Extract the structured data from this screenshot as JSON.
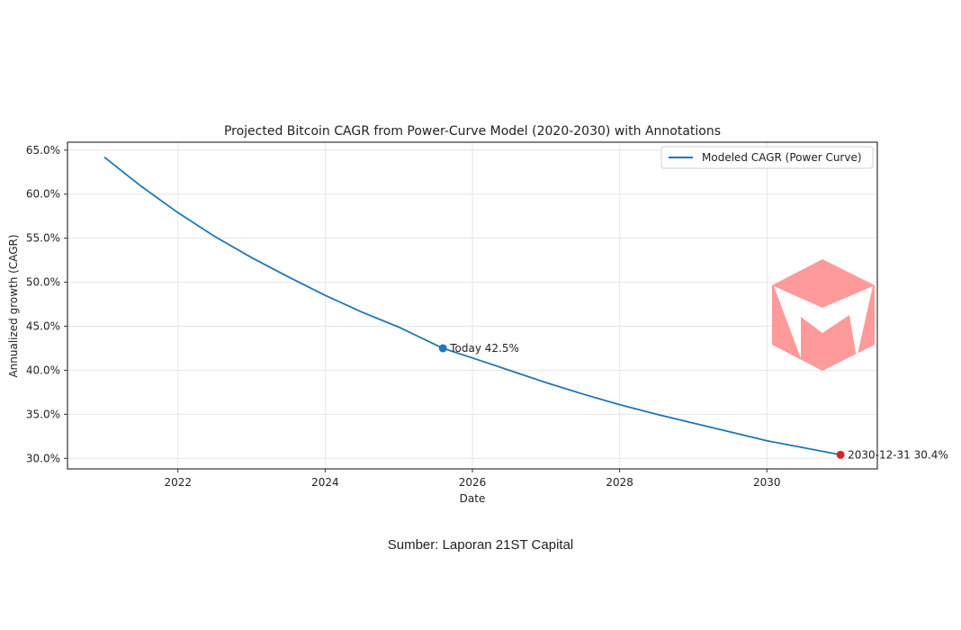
{
  "chart_data": {
    "type": "line",
    "title": "Projected Bitcoin CAGR from Power-Curve Model (2020-2030) with Annotations",
    "xlabel": "Date",
    "ylabel": "Annualized growth (CAGR)",
    "xlim": [
      2020.5,
      2031.5
    ],
    "ylim": [
      28.8,
      65.9
    ],
    "x_ticks": [
      2022,
      2024,
      2026,
      2028,
      2030
    ],
    "x_tick_labels": [
      "2022",
      "2024",
      "2026",
      "2028",
      "2030"
    ],
    "y_ticks": [
      30,
      35,
      40,
      45,
      50,
      55,
      60,
      65
    ],
    "y_tick_labels": [
      "30.0%",
      "35.0%",
      "40.0%",
      "45.0%",
      "50.0%",
      "55.0%",
      "60.0%",
      "65.0%"
    ],
    "grid": true,
    "legend_position": "upper right",
    "series": [
      {
        "name": "Modeled CAGR (Power Curve)",
        "color": "#1f77b4",
        "x": [
          2021.0,
          2021.5,
          2022.0,
          2022.5,
          2023.0,
          2023.5,
          2024.0,
          2024.5,
          2025.0,
          2025.6,
          2026.0,
          2026.5,
          2027.0,
          2027.5,
          2028.0,
          2028.5,
          2029.0,
          2029.5,
          2030.0,
          2030.5,
          2031.0
        ],
        "values": [
          64.2,
          60.9,
          57.9,
          55.2,
          52.8,
          50.6,
          48.5,
          46.6,
          44.9,
          42.5,
          41.4,
          40.0,
          38.6,
          37.3,
          36.1,
          35.0,
          34.0,
          33.0,
          32.0,
          31.2,
          30.4
        ]
      }
    ],
    "annotations": [
      {
        "label": "Today 42.5%",
        "x": 2025.6,
        "y": 42.5,
        "marker_color": "#1f77b4"
      },
      {
        "label": "2030-12-31 30.4%",
        "x": 2031.0,
        "y": 30.4,
        "marker_color": "#d62728"
      }
    ]
  },
  "legend": {
    "label": "Modeled CAGR (Power Curve)"
  },
  "watermark": {
    "icon": "m-cube-logo",
    "color": "#ff9a9a"
  },
  "caption": "Sumber: Laporan 21ST Capital"
}
